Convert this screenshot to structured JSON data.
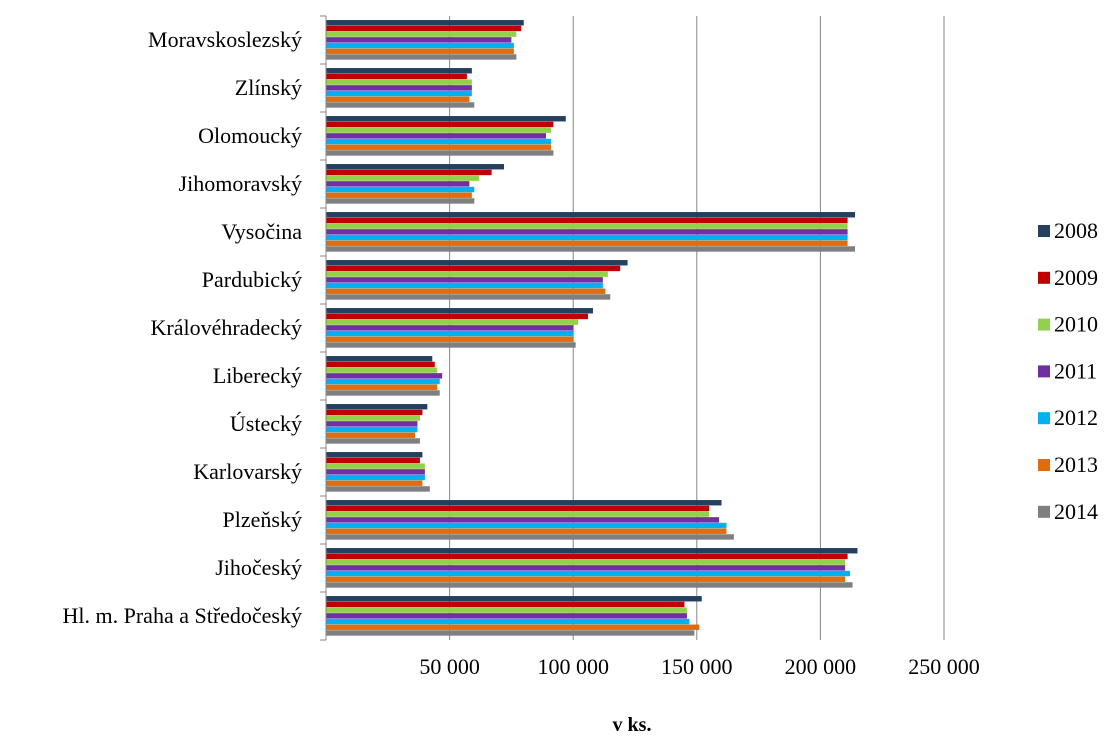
{
  "chart_data": {
    "type": "bar",
    "orientation": "horizontal",
    "categories": [
      "Moravskoslezský",
      "Zlínský",
      "Olomoucký",
      "Jihomoravský",
      "Vysočina",
      "Pardubický",
      "Královéhradecký",
      "Liberecký",
      "Ústecký",
      "Karlovarský",
      "Plzeňský",
      "Jihočeský",
      "Hl. m. Praha a Středočeský"
    ],
    "series": [
      {
        "name": "2008",
        "color": "#243F60",
        "values": [
          80000,
          59000,
          97000,
          72000,
          214000,
          122000,
          108000,
          43000,
          41000,
          39000,
          160000,
          215000,
          152000
        ]
      },
      {
        "name": "2009",
        "color": "#C00000",
        "values": [
          79000,
          57000,
          92000,
          67000,
          211000,
          119000,
          106000,
          44000,
          39000,
          38000,
          155000,
          211000,
          145000
        ]
      },
      {
        "name": "2010",
        "color": "#92D050",
        "values": [
          77000,
          59000,
          91000,
          62000,
          211000,
          114000,
          102000,
          45000,
          38000,
          40000,
          155000,
          210000,
          146000
        ]
      },
      {
        "name": "2011",
        "color": "#7030A0",
        "values": [
          75000,
          59000,
          89000,
          58000,
          211000,
          112000,
          100000,
          47000,
          37000,
          40000,
          159000,
          210000,
          146000
        ]
      },
      {
        "name": "2012",
        "color": "#00B0F0",
        "values": [
          76000,
          59000,
          91000,
          60000,
          211000,
          112000,
          100000,
          46000,
          37000,
          40000,
          162000,
          212000,
          147000
        ]
      },
      {
        "name": "2013",
        "color": "#E36C09",
        "values": [
          76000,
          58000,
          91000,
          59000,
          211000,
          113000,
          100000,
          45000,
          36000,
          39000,
          162000,
          210000,
          151000
        ]
      },
      {
        "name": "2014",
        "color": "#7F7F7F",
        "values": [
          77000,
          60000,
          92000,
          60000,
          214000,
          115000,
          101000,
          46000,
          38000,
          42000,
          165000,
          213000,
          149000
        ]
      }
    ],
    "xlim": [
      0,
      250000
    ],
    "xticks": [
      50000,
      100000,
      150000,
      200000,
      250000
    ],
    "xtick_labels": [
      "50 000",
      "100 000",
      "150 000",
      "200 000",
      "250 000"
    ],
    "xlabel": "v ks.",
    "ylabel": "",
    "title": "",
    "grid": "vertical",
    "legend_position": "right"
  }
}
